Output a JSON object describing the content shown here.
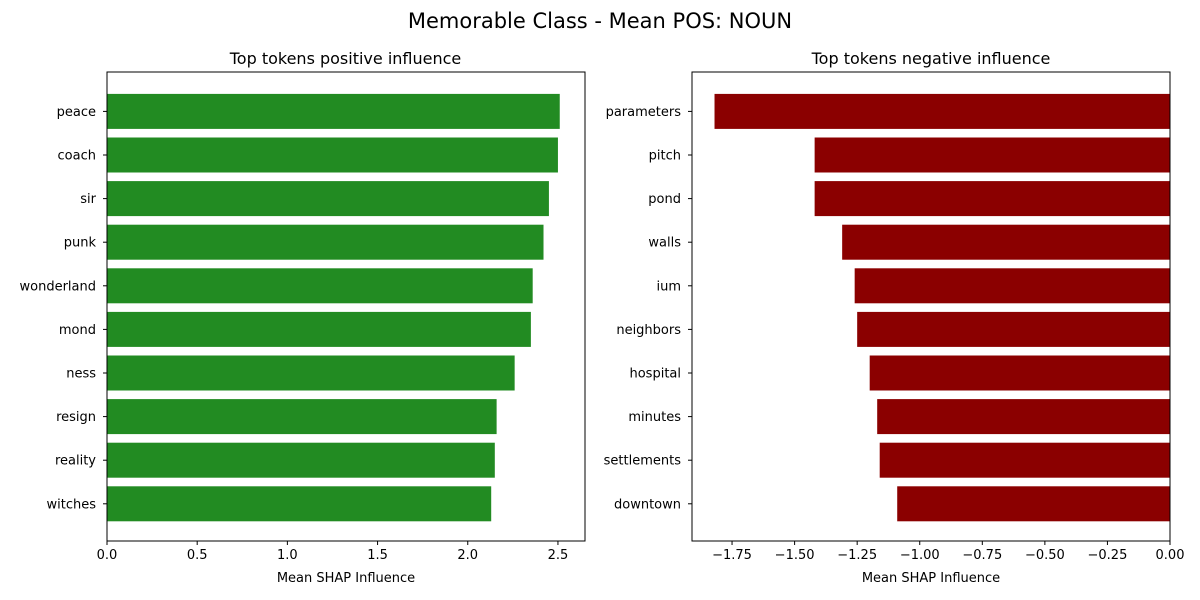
{
  "figure": {
    "title": "Memorable Class - Mean POS: NOUN"
  },
  "chart_data": [
    {
      "type": "bar",
      "orientation": "horizontal",
      "title": "Top tokens positive influence",
      "xlabel": "Mean SHAP Influence",
      "ylabel": "",
      "categories": [
        "peace",
        "coach",
        "sir",
        "punk",
        "wonderland",
        "mond",
        "ness",
        "resign",
        "reality",
        "witches"
      ],
      "values": [
        2.51,
        2.5,
        2.45,
        2.42,
        2.36,
        2.35,
        2.26,
        2.16,
        2.15,
        2.13
      ],
      "xlim": [
        0,
        2.65
      ],
      "xticks": [
        0.0,
        0.5,
        1.0,
        1.5,
        2.0,
        2.5
      ],
      "xtick_labels": [
        "0.0",
        "0.5",
        "1.0",
        "1.5",
        "2.0",
        "2.5"
      ],
      "color": "#228b22",
      "grid": false
    },
    {
      "type": "bar",
      "orientation": "horizontal",
      "title": "Top tokens negative influence",
      "xlabel": "Mean SHAP Influence",
      "ylabel": "",
      "categories": [
        "parameters",
        "pitch",
        "pond",
        "walls",
        "ium",
        "neighbors",
        "hospital",
        "minutes",
        "settlements",
        "downtown"
      ],
      "values": [
        -1.82,
        -1.42,
        -1.42,
        -1.31,
        -1.26,
        -1.25,
        -1.2,
        -1.17,
        -1.16,
        -1.09
      ],
      "xlim": [
        -1.91,
        0.0
      ],
      "xticks": [
        -1.75,
        -1.5,
        -1.25,
        -1.0,
        -0.75,
        -0.5,
        -0.25,
        0.0
      ],
      "xtick_labels": [
        "−1.75",
        "−1.50",
        "−1.25",
        "−1.00",
        "−0.75",
        "−0.50",
        "−0.25",
        "0.00"
      ],
      "color": "#8b0000",
      "grid": false
    }
  ]
}
